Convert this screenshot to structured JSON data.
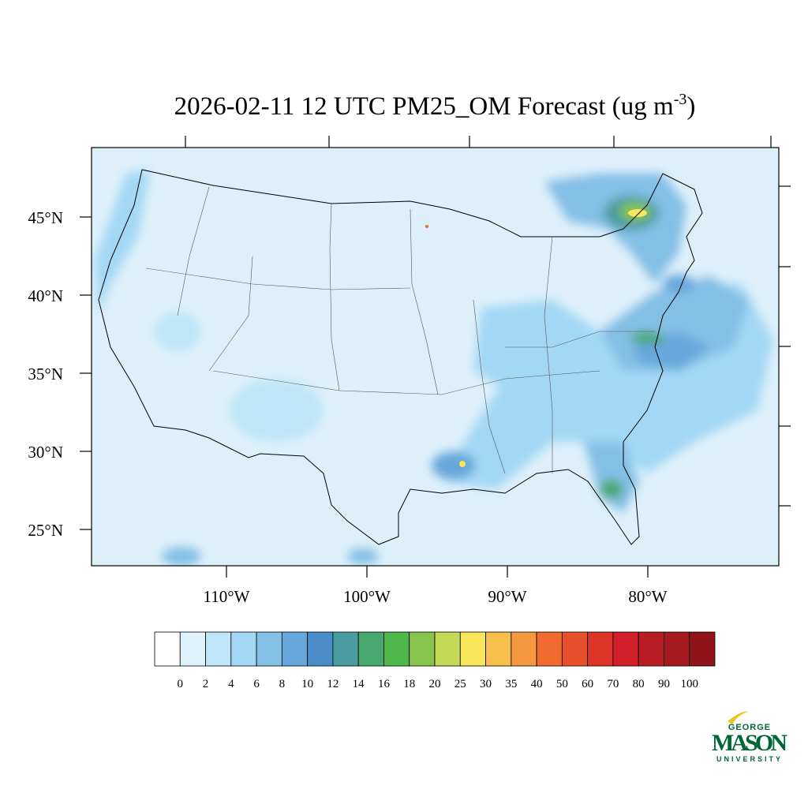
{
  "map": {
    "title": {
      "main": "2026-02-11 12 UTC PM25_OM Forecast (ug m",
      "superscript": "-3",
      "close": ")"
    },
    "lat_ticks": [
      {
        "value": 45,
        "label": "45°N"
      },
      {
        "value": 40,
        "label": "40°N"
      },
      {
        "value": 35,
        "label": "35°N"
      },
      {
        "value": 30,
        "label": "30°N"
      },
      {
        "value": 25,
        "label": "25°N"
      }
    ],
    "lon_ticks": [
      {
        "value": -110,
        "label": "110°W"
      },
      {
        "value": -100,
        "label": "100°W"
      },
      {
        "value": -90,
        "label": "90°W"
      },
      {
        "value": -80,
        "label": "80°W"
      }
    ],
    "colorbar": {
      "levels": [
        0,
        2,
        4,
        6,
        8,
        10,
        12,
        14,
        16,
        18,
        20,
        25,
        30,
        35,
        40,
        50,
        60,
        70,
        80,
        90,
        100
      ],
      "colors": [
        "#ffffff",
        "#ddf2fb",
        "#bfe6f8",
        "#a2d8f4",
        "#84bfe6",
        "#68a7db",
        "#4a8dc9",
        "#4a9ca0",
        "#48a870",
        "#4fb84a",
        "#86c44d",
        "#c3d957",
        "#f7e65a",
        "#f6bf4c",
        "#f59840",
        "#f26b2e",
        "#e8502b",
        "#dc3527",
        "#d21f2a",
        "#b81c25",
        "#a51a21",
        "#8f1419"
      ]
    },
    "logo": {
      "top": "GEORGE",
      "main": "MASON",
      "bottom": "UNIVERSITY"
    }
  }
}
